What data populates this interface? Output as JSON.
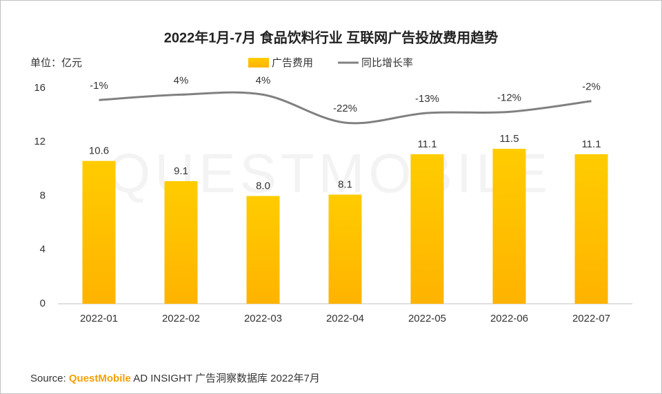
{
  "chart_data": {
    "type": "bar",
    "title": "2022年1月-7月 食品饮料行业 互联网广告投放费用趋势",
    "unit_label": "单位：亿元",
    "watermark": "QUESTMOBILE",
    "categories": [
      "2022-01",
      "2022-02",
      "2022-03",
      "2022-04",
      "2022-05",
      "2022-06",
      "2022-07"
    ],
    "series": [
      {
        "name": "广告费用",
        "type": "bar",
        "color": "#ffc000",
        "values": [
          10.6,
          9.1,
          8.0,
          8.1,
          11.1,
          11.5,
          11.1
        ],
        "value_labels": [
          "10.6",
          "9.1",
          "8.0",
          "8.1",
          "11.1",
          "11.5",
          "11.1"
        ]
      },
      {
        "name": "同比增长率",
        "type": "line",
        "axis": "y2",
        "color": "#808080",
        "values": [
          -1,
          4,
          4,
          -22,
          -13,
          -12,
          -2
        ],
        "value_labels": [
          "-1%",
          "4%",
          "4%",
          "-22%",
          "-13%",
          "-12%",
          "-2%"
        ]
      }
    ],
    "ylim": [
      0,
      16
    ],
    "yticks": [
      0,
      4,
      8,
      12,
      16
    ],
    "y2lim": [
      -190,
      10
    ],
    "grid": false,
    "legend": "top",
    "source": {
      "prefix": "Source:",
      "brand": "QuestMobile",
      "rest": "AD INSIGHT 广告洞察数据库 2022年7月"
    }
  }
}
